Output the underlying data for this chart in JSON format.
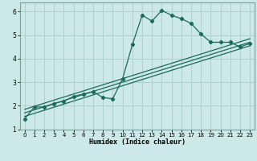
{
  "xlabel": "Humidex (Indice chaleur)",
  "ylabel": "",
  "xlim": [
    -0.5,
    23.5
  ],
  "ylim": [
    1.0,
    6.4
  ],
  "xticks": [
    0,
    1,
    2,
    3,
    4,
    5,
    6,
    7,
    8,
    9,
    10,
    11,
    12,
    13,
    14,
    15,
    16,
    17,
    18,
    19,
    20,
    21,
    22,
    23
  ],
  "yticks": [
    1,
    2,
    3,
    4,
    5,
    6
  ],
  "bg_color": "#cce8e8",
  "grid_color": "#aacccc",
  "line_color": "#1a6b5a",
  "curve1_x": [
    0,
    1,
    2,
    3,
    4,
    5,
    6,
    7,
    8,
    9,
    10,
    11,
    12,
    13,
    14,
    15,
    16,
    17,
    18,
    19,
    20,
    21,
    22,
    23
  ],
  "curve1_y": [
    1.45,
    1.95,
    1.95,
    2.1,
    2.2,
    2.4,
    2.5,
    2.6,
    2.35,
    2.3,
    3.15,
    4.6,
    5.85,
    5.6,
    6.05,
    5.85,
    5.7,
    5.5,
    5.05,
    4.7,
    4.7,
    4.7,
    4.5,
    4.65
  ],
  "line1_x": [
    0,
    23
  ],
  "line1_y": [
    1.55,
    4.55
  ],
  "line2_x": [
    0,
    23
  ],
  "line2_y": [
    1.7,
    4.7
  ],
  "line3_x": [
    0,
    23
  ],
  "line3_y": [
    1.85,
    4.85
  ]
}
